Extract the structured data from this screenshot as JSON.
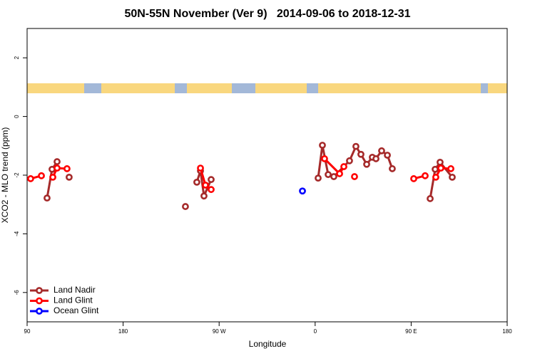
{
  "chart_data": {
    "type": "line",
    "title": "50N-55N November (Ver 9)   2014-09-06 to 2018-12-31",
    "x_label": "Longitude",
    "y_label": "XCO2 - MLO trend (ppm)",
    "xlim": [
      90,
      540
    ],
    "xticks": [
      90,
      180,
      {
        "value": 270,
        "label": "90 W"
      },
      {
        "value": 360,
        "label": "0"
      },
      {
        "value": 450,
        "label": "90 E"
      },
      {
        "value": 540,
        "label": "180"
      }
    ],
    "ylim": [
      -7,
      3
    ],
    "yticks": [
      -6,
      -4,
      -2,
      0,
      2
    ],
    "legend": "bottomleft",
    "series": [
      {
        "name": "Land Nadir",
        "color": "#a52a2a",
        "x": [
          108.7,
          113.4,
          118.1,
          null,
          129.4,
          null,
          238.4,
          null,
          249.1,
          252.5,
          255.8,
          262.5,
          null,
          362.8,
          366.8,
          372.2,
          377.5,
          392.2,
          398.2,
          402.9,
          408.3,
          413.6,
          417.0,
          422.3,
          427.7,
          432.3,
          null,
          467.8,
          472.5,
          477.1,
          488.5
        ],
        "values": [
          -2.78,
          -1.8,
          -1.54,
          null,
          -2.07,
          null,
          -3.07,
          null,
          -2.24,
          -1.85,
          -2.71,
          -2.15,
          null,
          -2.1,
          -0.98,
          -1.98,
          -2.05,
          -1.51,
          -1.02,
          -1.29,
          -1.63,
          -1.39,
          -1.44,
          -1.17,
          -1.32,
          -1.78,
          null,
          -2.8,
          -1.8,
          -1.56,
          -2.07
        ]
      },
      {
        "name": "Land Glint",
        "color": "#ff0000",
        "x": [
          93.3,
          103.4,
          null,
          114.1,
          118.1,
          127.4,
          null,
          252.5,
          257.2,
          262.5,
          null,
          368.8,
          382.9,
          386.9,
          null,
          396.9,
          null,
          452.4,
          463.1,
          null,
          473.1,
          477.8,
          487.2
        ],
        "values": [
          -2.12,
          -2.02,
          null,
          -2.07,
          -1.76,
          -1.78,
          null,
          -1.76,
          -2.34,
          -2.49,
          null,
          -1.44,
          -1.95,
          -1.71,
          null,
          -2.05,
          null,
          -2.12,
          -2.02,
          null,
          -2.07,
          -1.76,
          -1.78
        ]
      },
      {
        "name": "Ocean Glint",
        "color": "#0000ff",
        "x": [
          348.1
        ],
        "values": [
          -2.54
        ]
      }
    ]
  }
}
